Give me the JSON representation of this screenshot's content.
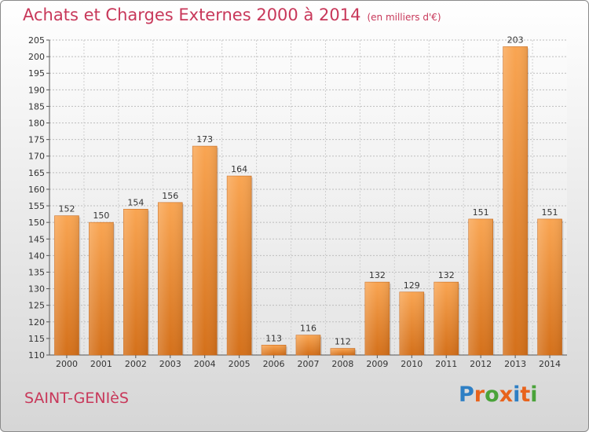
{
  "header": {
    "title": "Achats et Charges Externes 2000 à 2014",
    "subtitle": "(en milliers d'€)"
  },
  "footer": {
    "place": "SAINT-GENIèS",
    "logo": "Proxiti"
  },
  "colors": {
    "title": "#c8385a",
    "bar_light": "#f7a24e",
    "bar_dark": "#d4701a",
    "logo_letters": [
      "#2e7fc4",
      "#e8631c",
      "#4aa33a",
      "#e8631c",
      "#2e7fc4",
      "#e8631c",
      "#4aa33a"
    ]
  },
  "chart_data": {
    "type": "bar",
    "title": "Achats et Charges Externes 2000 à 2014",
    "subtitle": "(en milliers d'€)",
    "xlabel": "",
    "ylabel": "",
    "categories": [
      "2000",
      "2001",
      "2002",
      "2003",
      "2004",
      "2005",
      "2006",
      "2007",
      "2008",
      "2009",
      "2010",
      "2011",
      "2012",
      "2013",
      "2014"
    ],
    "values": [
      152,
      150,
      154,
      156,
      173,
      164,
      113,
      116,
      112,
      132,
      129,
      132,
      151,
      203,
      151
    ],
    "ylim": [
      110,
      205
    ],
    "yticks": [
      110,
      115,
      120,
      125,
      130,
      135,
      140,
      145,
      150,
      155,
      160,
      165,
      170,
      175,
      180,
      185,
      190,
      195,
      200,
      205
    ],
    "grid": true,
    "legend": "none"
  }
}
